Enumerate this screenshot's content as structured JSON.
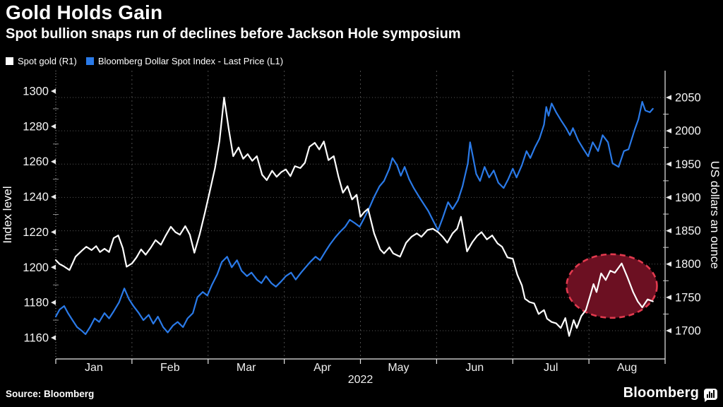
{
  "header": {
    "title": "Gold Holds Gain",
    "subtitle": "Spot bullion snaps run of declines before Jackson Hole symposium"
  },
  "legend": [
    {
      "label": "Spot gold (R1)",
      "color": "#ffffff"
    },
    {
      "label": "Bloomberg Dollar Spot Index - Last Price (L1)",
      "color": "#2a7ae8"
    }
  ],
  "footer": {
    "source": "Source: Bloomberg",
    "brand": "Bloomberg"
  },
  "chart_data": {
    "type": "line",
    "title": "Gold Holds Gain",
    "x_axis": {
      "months": [
        "Jan",
        "Feb",
        "Mar",
        "Apr",
        "May",
        "Jun",
        "Jul",
        "Aug"
      ],
      "year_label": "2022"
    },
    "left_axis": {
      "title": "Index level",
      "ticks": [
        1160,
        1180,
        1200,
        1220,
        1240,
        1260,
        1280,
        1300
      ],
      "ylim": [
        1148,
        1310
      ]
    },
    "right_axis": {
      "title": "US dollars an ounce",
      "ticks": [
        1700,
        1750,
        1800,
        1850,
        1900,
        1950,
        2000,
        2050
      ],
      "ylim": [
        1658,
        2087
      ]
    },
    "grid": "dotted horizontal at right-axis ticks, dashed vertical at month starts",
    "series": [
      {
        "name": "Spot gold (R1)",
        "axis": "right",
        "color": "#ffffff",
        "points": [
          [
            0.0,
            1806
          ],
          [
            0.05,
            1800
          ],
          [
            0.1,
            1797
          ],
          [
            0.18,
            1791
          ],
          [
            0.26,
            1811
          ],
          [
            0.34,
            1820
          ],
          [
            0.4,
            1826
          ],
          [
            0.47,
            1821
          ],
          [
            0.53,
            1827
          ],
          [
            0.58,
            1818
          ],
          [
            0.64,
            1823
          ],
          [
            0.7,
            1818
          ],
          [
            0.76,
            1839
          ],
          [
            0.82,
            1843
          ],
          [
            0.88,
            1824
          ],
          [
            0.93,
            1796
          ],
          [
            1.0,
            1801
          ],
          [
            1.06,
            1810
          ],
          [
            1.12,
            1822
          ],
          [
            1.18,
            1814
          ],
          [
            1.25,
            1825
          ],
          [
            1.31,
            1836
          ],
          [
            1.38,
            1829
          ],
          [
            1.44,
            1842
          ],
          [
            1.51,
            1856
          ],
          [
            1.57,
            1848
          ],
          [
            1.63,
            1844
          ],
          [
            1.7,
            1857
          ],
          [
            1.76,
            1844
          ],
          [
            1.82,
            1817
          ],
          [
            1.89,
            1845
          ],
          [
            1.96,
            1878
          ],
          [
            2.02,
            1908
          ],
          [
            2.09,
            1944
          ],
          [
            2.15,
            1985
          ],
          [
            2.21,
            2050
          ],
          [
            2.27,
            2003
          ],
          [
            2.33,
            1962
          ],
          [
            2.4,
            1975
          ],
          [
            2.46,
            1958
          ],
          [
            2.52,
            1965
          ],
          [
            2.58,
            1955
          ],
          [
            2.64,
            1962
          ],
          [
            2.71,
            1934
          ],
          [
            2.77,
            1926
          ],
          [
            2.84,
            1940
          ],
          [
            2.9,
            1931
          ],
          [
            2.96,
            1938
          ],
          [
            3.02,
            1942
          ],
          [
            3.08,
            1932
          ],
          [
            3.14,
            1947
          ],
          [
            3.21,
            1944
          ],
          [
            3.27,
            1952
          ],
          [
            3.33,
            1976
          ],
          [
            3.4,
            1982
          ],
          [
            3.46,
            1972
          ],
          [
            3.52,
            1984
          ],
          [
            3.58,
            1956
          ],
          [
            3.65,
            1962
          ],
          [
            3.71,
            1932
          ],
          [
            3.77,
            1907
          ],
          [
            3.83,
            1917
          ],
          [
            3.89,
            1897
          ],
          [
            3.95,
            1904
          ],
          [
            4.0,
            1871
          ],
          [
            4.05,
            1878
          ],
          [
            4.1,
            1883
          ],
          [
            4.18,
            1846
          ],
          [
            4.26,
            1822
          ],
          [
            4.31,
            1816
          ],
          [
            4.38,
            1825
          ],
          [
            4.43,
            1816
          ],
          [
            4.52,
            1811
          ],
          [
            4.6,
            1832
          ],
          [
            4.67,
            1841
          ],
          [
            4.74,
            1846
          ],
          [
            4.8,
            1841
          ],
          [
            4.88,
            1851
          ],
          [
            4.95,
            1853
          ],
          [
            5.02,
            1848
          ],
          [
            5.08,
            1841
          ],
          [
            5.14,
            1832
          ],
          [
            5.21,
            1846
          ],
          [
            5.27,
            1853
          ],
          [
            5.32,
            1871
          ],
          [
            5.4,
            1819
          ],
          [
            5.47,
            1833
          ],
          [
            5.53,
            1842
          ],
          [
            5.59,
            1848
          ],
          [
            5.66,
            1837
          ],
          [
            5.73,
            1843
          ],
          [
            5.8,
            1831
          ],
          [
            5.86,
            1826
          ],
          [
            5.93,
            1810
          ],
          [
            6.0,
            1808
          ],
          [
            6.06,
            1784
          ],
          [
            6.12,
            1768
          ],
          [
            6.16,
            1748
          ],
          [
            6.22,
            1743
          ],
          [
            6.28,
            1741
          ],
          [
            6.34,
            1725
          ],
          [
            6.41,
            1731
          ],
          [
            6.45,
            1718
          ],
          [
            6.51,
            1713
          ],
          [
            6.57,
            1711
          ],
          [
            6.63,
            1704
          ],
          [
            6.69,
            1719
          ],
          [
            6.74,
            1692
          ],
          [
            6.8,
            1716
          ],
          [
            6.84,
            1704
          ],
          [
            6.9,
            1722
          ],
          [
            6.96,
            1731
          ],
          [
            7.02,
            1754
          ],
          [
            7.06,
            1770
          ],
          [
            7.1,
            1758
          ],
          [
            7.16,
            1786
          ],
          [
            7.22,
            1776
          ],
          [
            7.28,
            1790
          ],
          [
            7.34,
            1787
          ],
          [
            7.43,
            1801
          ],
          [
            7.51,
            1779
          ],
          [
            7.58,
            1758
          ],
          [
            7.64,
            1744
          ],
          [
            7.7,
            1735
          ],
          [
            7.77,
            1747
          ],
          [
            7.84,
            1744
          ]
        ]
      },
      {
        "name": "Bloomberg Dollar Spot Index - Last Price (L1)",
        "axis": "left",
        "color": "#2a7ae8",
        "points": [
          [
            0.0,
            1172
          ],
          [
            0.05,
            1176
          ],
          [
            0.11,
            1178
          ],
          [
            0.16,
            1174
          ],
          [
            0.22,
            1170
          ],
          [
            0.28,
            1166
          ],
          [
            0.34,
            1164
          ],
          [
            0.39,
            1162
          ],
          [
            0.45,
            1166
          ],
          [
            0.51,
            1171
          ],
          [
            0.57,
            1169
          ],
          [
            0.64,
            1174
          ],
          [
            0.7,
            1171
          ],
          [
            0.76,
            1175
          ],
          [
            0.83,
            1180
          ],
          [
            0.9,
            1188
          ],
          [
            0.96,
            1182
          ],
          [
            1.02,
            1178
          ],
          [
            1.09,
            1174
          ],
          [
            1.15,
            1170
          ],
          [
            1.22,
            1173
          ],
          [
            1.28,
            1168
          ],
          [
            1.34,
            1172
          ],
          [
            1.41,
            1166
          ],
          [
            1.47,
            1163
          ],
          [
            1.54,
            1167
          ],
          [
            1.6,
            1169
          ],
          [
            1.67,
            1166
          ],
          [
            1.73,
            1171
          ],
          [
            1.8,
            1174
          ],
          [
            1.86,
            1183
          ],
          [
            1.93,
            1186
          ],
          [
            1.99,
            1184
          ],
          [
            2.05,
            1190
          ],
          [
            2.12,
            1196
          ],
          [
            2.18,
            1203
          ],
          [
            2.25,
            1206
          ],
          [
            2.31,
            1200
          ],
          [
            2.38,
            1204
          ],
          [
            2.44,
            1198
          ],
          [
            2.51,
            1195
          ],
          [
            2.57,
            1197
          ],
          [
            2.64,
            1193
          ],
          [
            2.7,
            1191
          ],
          [
            2.76,
            1195
          ],
          [
            2.83,
            1191
          ],
          [
            2.89,
            1189
          ],
          [
            2.96,
            1192
          ],
          [
            3.02,
            1195
          ],
          [
            3.09,
            1197
          ],
          [
            3.15,
            1193
          ],
          [
            3.22,
            1197
          ],
          [
            3.28,
            1200
          ],
          [
            3.34,
            1203
          ],
          [
            3.41,
            1206
          ],
          [
            3.47,
            1204
          ],
          [
            3.54,
            1209
          ],
          [
            3.6,
            1213
          ],
          [
            3.67,
            1217
          ],
          [
            3.73,
            1220
          ],
          [
            3.8,
            1223
          ],
          [
            3.86,
            1227
          ],
          [
            3.93,
            1225
          ],
          [
            3.99,
            1223
          ],
          [
            4.05,
            1228
          ],
          [
            4.12,
            1234
          ],
          [
            4.18,
            1240
          ],
          [
            4.25,
            1246
          ],
          [
            4.31,
            1249
          ],
          [
            4.38,
            1256
          ],
          [
            4.42,
            1262
          ],
          [
            4.48,
            1258
          ],
          [
            4.53,
            1252
          ],
          [
            4.58,
            1257
          ],
          [
            4.64,
            1250
          ],
          [
            4.7,
            1245
          ],
          [
            4.77,
            1240
          ],
          [
            4.83,
            1236
          ],
          [
            4.89,
            1232
          ],
          [
            4.96,
            1226
          ],
          [
            5.02,
            1221
          ],
          [
            5.08,
            1228
          ],
          [
            5.15,
            1237
          ],
          [
            5.21,
            1233
          ],
          [
            5.28,
            1238
          ],
          [
            5.34,
            1246
          ],
          [
            5.41,
            1259
          ],
          [
            5.44,
            1271
          ],
          [
            5.48,
            1262
          ],
          [
            5.52,
            1253
          ],
          [
            5.57,
            1249
          ],
          [
            5.63,
            1257
          ],
          [
            5.69,
            1251
          ],
          [
            5.75,
            1255
          ],
          [
            5.81,
            1248
          ],
          [
            5.88,
            1245
          ],
          [
            5.94,
            1250
          ],
          [
            6.0,
            1256
          ],
          [
            6.05,
            1251
          ],
          [
            6.12,
            1258
          ],
          [
            6.18,
            1266
          ],
          [
            6.23,
            1262
          ],
          [
            6.29,
            1268
          ],
          [
            6.35,
            1273
          ],
          [
            6.41,
            1281
          ],
          [
            6.44,
            1291
          ],
          [
            6.47,
            1286
          ],
          [
            6.51,
            1293
          ],
          [
            6.57,
            1288
          ],
          [
            6.64,
            1283
          ],
          [
            6.7,
            1279
          ],
          [
            6.75,
            1275
          ],
          [
            6.79,
            1279
          ],
          [
            6.86,
            1272
          ],
          [
            6.93,
            1267
          ],
          [
            6.99,
            1263
          ],
          [
            7.05,
            1271
          ],
          [
            7.12,
            1266
          ],
          [
            7.18,
            1275
          ],
          [
            7.25,
            1271
          ],
          [
            7.31,
            1259
          ],
          [
            7.39,
            1257
          ],
          [
            7.46,
            1266
          ],
          [
            7.52,
            1267
          ],
          [
            7.6,
            1278
          ],
          [
            7.65,
            1284
          ],
          [
            7.7,
            1294
          ],
          [
            7.74,
            1289
          ],
          [
            7.8,
            1288
          ],
          [
            7.84,
            1290
          ]
        ]
      }
    ],
    "annotation": {
      "shape": "ellipse",
      "center_month": 7.3,
      "center_value_right_axis": 1767,
      "radius_x_px": 64,
      "radius_y_px": 45,
      "fill": "#6c1022",
      "stroke": "#e23a4e",
      "stroke_style": "dashed"
    }
  }
}
